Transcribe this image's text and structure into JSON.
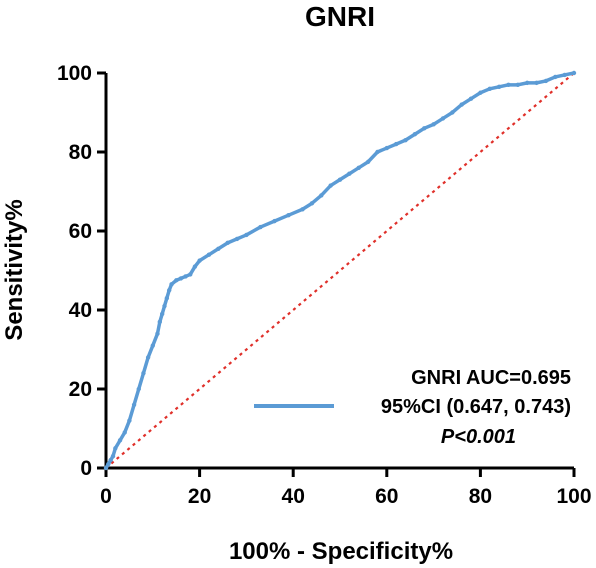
{
  "chart_data": {
    "type": "line",
    "title": "GNRI",
    "xlabel": "100% - Specificity%",
    "ylabel": "Sensitivity%",
    "xlim": [
      0,
      100
    ],
    "ylim": [
      0,
      100
    ],
    "xticks": [
      "0",
      "20",
      "40",
      "60",
      "80",
      "100"
    ],
    "yticks": [
      "0",
      "20",
      "40",
      "60",
      "80",
      "100"
    ],
    "legend": {
      "line1": "GNRI  AUC=0.695",
      "line2": "95%CI (0.647, 0.743)",
      "p_value": "P<0.001",
      "position": "bottom-right"
    },
    "colors": {
      "roc": "#5b9bd5",
      "reference": "#e0302a"
    },
    "series": [
      {
        "name": "GNRI",
        "x": [
          0,
          0.5,
          1,
          1.5,
          2,
          3,
          4,
          5,
          6,
          7,
          8,
          9,
          10,
          11,
          11.5,
          12,
          12.5,
          13,
          13.5,
          14,
          15,
          16,
          17,
          18,
          19,
          20,
          22,
          24,
          26,
          28,
          30,
          33,
          36,
          39,
          42,
          44,
          46,
          48,
          50,
          52,
          54,
          56,
          58,
          60,
          62,
          64,
          66,
          68,
          70,
          72,
          74,
          76,
          78,
          80,
          82,
          84,
          86,
          88,
          90,
          92,
          94,
          96,
          98,
          100
        ],
        "y": [
          0,
          1,
          2,
          3,
          5,
          7,
          9,
          12,
          16,
          20,
          24,
          28,
          31,
          34,
          37,
          39,
          41,
          43,
          45,
          46.5,
          47.5,
          48,
          48.5,
          49,
          51,
          52.5,
          54,
          55.5,
          57,
          58,
          59,
          61,
          62.5,
          64,
          65.5,
          67,
          69,
          71.5,
          73,
          74.5,
          76,
          77.5,
          80,
          81,
          82,
          83,
          84.5,
          86,
          87,
          88.5,
          90,
          92,
          93.5,
          95,
          96,
          96.5,
          97,
          97,
          97.5,
          97.5,
          98,
          99,
          99.5,
          100
        ]
      },
      {
        "name": "Reference line",
        "x": [
          0,
          100
        ],
        "y": [
          0,
          100
        ]
      }
    ]
  }
}
